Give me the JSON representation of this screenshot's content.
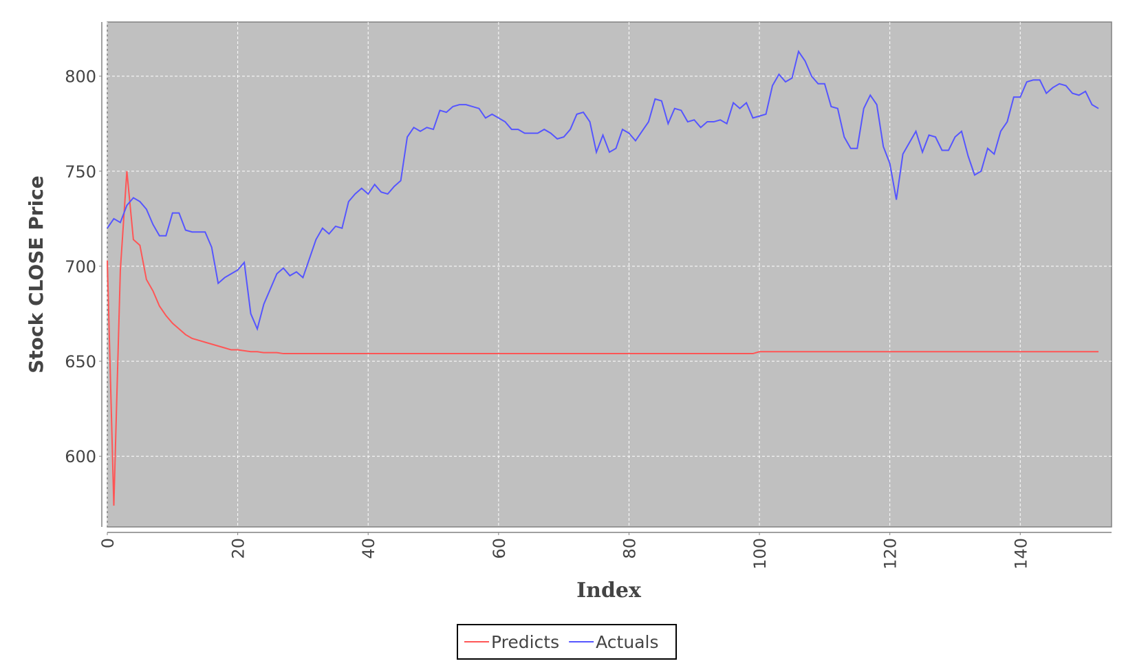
{
  "chart_data": {
    "type": "line",
    "x_label": "Index",
    "y_label": "Stock CLOSE Price",
    "x": [
      0,
      1,
      2,
      3,
      4,
      5,
      6,
      7,
      8,
      9,
      10,
      11,
      12,
      13,
      14,
      15,
      16,
      17,
      18,
      19,
      20,
      21,
      22,
      23,
      24,
      25,
      26,
      27,
      28,
      29,
      30,
      31,
      32,
      33,
      34,
      35,
      36,
      37,
      38,
      39,
      40,
      41,
      42,
      43,
      44,
      45,
      46,
      47,
      48,
      49,
      50,
      51,
      52,
      53,
      54,
      55,
      56,
      57,
      58,
      59,
      60,
      61,
      62,
      63,
      64,
      65,
      66,
      67,
      68,
      69,
      70,
      71,
      72,
      73,
      74,
      75,
      76,
      77,
      78,
      79,
      80,
      81,
      82,
      83,
      84,
      85,
      86,
      87,
      88,
      89,
      90,
      91,
      92,
      93,
      94,
      95,
      96,
      97,
      98,
      99,
      100,
      101,
      102,
      103,
      104,
      105,
      106,
      107,
      108,
      109,
      110,
      111,
      112,
      113,
      114,
      115,
      116,
      117,
      118,
      119,
      120,
      121,
      122,
      123,
      124,
      125,
      126,
      127,
      128,
      129,
      130,
      131,
      132,
      133,
      134,
      135,
      136,
      137,
      138,
      139,
      140,
      141,
      142,
      143,
      144,
      145,
      146,
      147,
      148,
      149,
      150,
      151,
      152
    ],
    "series": [
      {
        "name": "Predicts",
        "color": "#ff5555",
        "values": [
          703,
          574,
          698,
          750,
          714,
          711,
          693,
          687,
          679,
          674,
          670,
          667,
          664,
          662,
          661,
          660,
          659,
          658,
          657,
          656,
          656,
          655.5,
          655,
          655,
          654.5,
          654.5,
          654.5,
          654,
          654,
          654,
          654,
          654,
          654,
          654,
          654,
          654,
          654,
          654,
          654,
          654,
          654,
          654,
          654,
          654,
          654,
          654,
          654,
          654,
          654,
          654,
          654,
          654,
          654,
          654,
          654,
          654,
          654,
          654,
          654,
          654,
          654,
          654,
          654,
          654,
          654,
          654,
          654,
          654,
          654,
          654,
          654,
          654,
          654,
          654,
          654,
          654,
          654,
          654,
          654,
          654,
          654,
          654,
          654,
          654,
          654,
          654,
          654,
          654,
          654,
          654,
          654,
          654,
          654,
          654,
          654,
          654,
          654,
          654,
          654,
          654,
          655,
          655,
          655,
          655,
          655,
          655,
          655,
          655,
          655,
          655,
          655,
          655,
          655,
          655,
          655,
          655,
          655,
          655,
          655,
          655,
          655,
          655,
          655,
          655,
          655,
          655,
          655,
          655,
          655,
          655,
          655,
          655,
          655,
          655,
          655,
          655,
          655,
          655,
          655,
          655,
          655,
          655,
          655,
          655,
          655,
          655,
          655,
          655,
          655,
          655,
          655,
          655,
          655
        ]
      },
      {
        "name": "Actuals",
        "color": "#5555ff",
        "values": [
          720,
          725,
          723,
          732,
          736,
          734,
          730,
          722,
          716,
          716,
          728,
          728,
          719,
          718,
          718,
          718,
          710,
          691,
          694,
          696,
          698,
          702,
          675,
          667,
          680,
          688,
          696,
          699,
          695,
          697,
          694,
          704,
          714,
          720,
          717,
          721,
          720,
          734,
          738,
          741,
          738,
          743,
          739,
          738,
          742,
          745,
          768,
          773,
          771,
          773,
          772,
          782,
          781,
          784,
          785,
          785,
          784,
          783,
          778,
          780,
          778,
          776,
          772,
          772,
          770,
          770,
          770,
          772,
          770,
          767,
          768,
          772,
          780,
          781,
          776,
          760,
          769,
          760,
          762,
          772,
          770,
          766,
          771,
          776,
          788,
          787,
          775,
          783,
          782,
          776,
          777,
          773,
          776,
          776,
          777,
          775,
          786,
          783,
          786,
          778,
          779,
          780,
          795,
          801,
          797,
          799,
          813,
          808,
          800,
          796,
          796,
          784,
          783,
          768,
          762,
          762,
          783,
          790,
          785,
          763,
          754,
          735,
          759,
          765,
          771,
          760,
          769,
          768,
          761,
          761,
          768,
          771,
          758,
          748,
          750,
          762,
          759,
          771,
          776,
          789,
          789,
          797,
          798,
          798,
          791,
          794,
          796,
          795,
          791,
          790,
          792,
          785,
          783
        ]
      }
    ],
    "xlim": [
      0,
      154
    ],
    "ylim": [
      562.8,
      828.5
    ],
    "xticks": [
      0,
      20,
      40,
      60,
      80,
      100,
      120,
      140
    ],
    "yticks": [
      600,
      650,
      700,
      750,
      800
    ],
    "grid": true,
    "legend": "bottom"
  }
}
